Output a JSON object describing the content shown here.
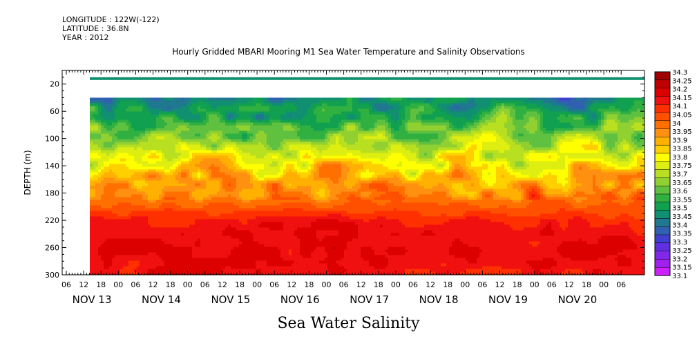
{
  "header": {
    "longitude": "LONGITUDE : 122W(-122)",
    "latitude": "LATITUDE : 36.8N",
    "year": "YEAR : 2012"
  },
  "chart_data": {
    "type": "heatmap",
    "title": "Hourly Gridded MBARI Mooring M1 Sea Water Temperature and Salinity Observations",
    "xlabel": "Sea Water Salinity",
    "ylabel": "DEPTH (m)",
    "y_axis": {
      "range": [
        300,
        0
      ],
      "inverted": true,
      "ticks": [
        20,
        60,
        100,
        140,
        180,
        220,
        260,
        300
      ]
    },
    "x_axis": {
      "hour_ticks": [
        "06",
        "12",
        "18",
        "00",
        "06",
        "12",
        "18",
        "00",
        "06",
        "12",
        "18",
        "00",
        "06",
        "12",
        "18",
        "00",
        "06",
        "12",
        "18",
        "00",
        "06",
        "12",
        "18",
        "00",
        "06",
        "12",
        "18",
        "00",
        "06",
        "12",
        "18",
        "00",
        "06"
      ],
      "day_labels": [
        "NOV 13",
        "NOV 14",
        "NOV 15",
        "NOV 16",
        "NOV 17",
        "NOV 18",
        "NOV 19",
        "NOV 20"
      ],
      "day_label_hour_index": [
        1,
        5,
        9,
        13,
        17,
        21,
        25,
        29
      ]
    },
    "colorbar": {
      "min": 33.1,
      "max": 34.3,
      "step": 0.05,
      "labels": [
        "34.3",
        "34.25",
        "34.2",
        "34.15",
        "34.1",
        "34.05",
        "34",
        "33.95",
        "33.9",
        "33.85",
        "33.8",
        "33.75",
        "33.7",
        "33.65",
        "33.6",
        "33.55",
        "33.5",
        "33.45",
        "33.4",
        "33.35",
        "33.3",
        "33.25",
        "33.2",
        "33.15",
        "33.1"
      ],
      "colors": [
        "#a00000",
        "#c00000",
        "#dd0000",
        "#f01010",
        "#ff3000",
        "#ff5000",
        "#ff7000",
        "#ff9010",
        "#ffb000",
        "#ffd000",
        "#ffff00",
        "#ddee10",
        "#b8e020",
        "#90d030",
        "#60c040",
        "#30b040",
        "#10a050",
        "#109070",
        "#207890",
        "#3060b0",
        "#4040d0",
        "#6030e0",
        "#8028e8",
        "#a020f0",
        "#cc20ff"
      ]
    },
    "data_coverage": {
      "start": "NOV 13 12",
      "end": "NOV 20 06",
      "depth_bands": [
        [
          10,
          14
        ],
        [
          40,
          300
        ]
      ]
    },
    "salinity_profile": [
      {
        "depth": 40,
        "value": 33.45
      },
      {
        "depth": 60,
        "value": 33.55
      },
      {
        "depth": 100,
        "value": 33.7
      },
      {
        "depth": 140,
        "value": 33.85
      },
      {
        "depth": 180,
        "value": 33.98
      },
      {
        "depth": 220,
        "value": 34.15
      },
      {
        "depth": 260,
        "value": 34.22
      },
      {
        "depth": 300,
        "value": 34.17
      }
    ]
  }
}
